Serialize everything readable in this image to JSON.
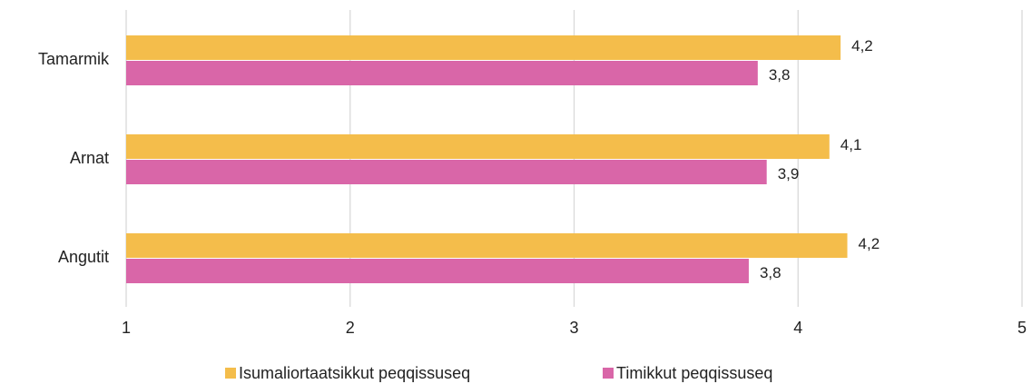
{
  "chart_data": {
    "type": "hbar",
    "categories": [
      "Tamarmik",
      "Arnat",
      "Angutit"
    ],
    "series": [
      {
        "name": "Isumaliortaatsikkut peqqissuseq",
        "color": "#f4bd4b",
        "values": [
          4.19,
          4.14,
          4.22
        ],
        "value_labels": [
          "4,2",
          "4,1",
          "4,2"
        ]
      },
      {
        "name": "Timikkut peqqissuseq",
        "color": "#d966a8",
        "values": [
          3.82,
          3.86,
          3.78
        ],
        "value_labels": [
          "3,8",
          "3,9",
          "3,8"
        ]
      }
    ],
    "xlim": [
      1,
      5
    ],
    "xticks": [
      1,
      2,
      3,
      4,
      5
    ],
    "grid": true
  }
}
